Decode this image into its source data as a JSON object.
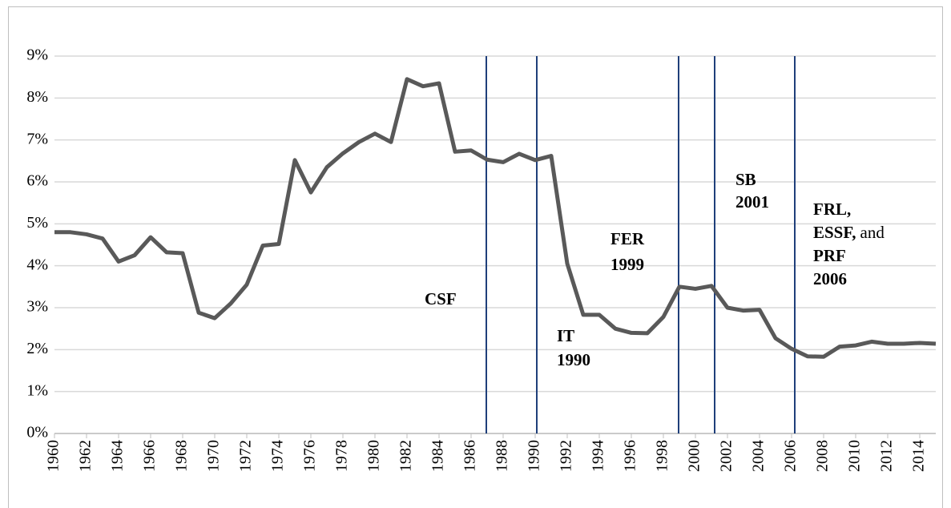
{
  "chart_data": {
    "type": "line",
    "x": [
      1960,
      1961,
      1962,
      1963,
      1964,
      1965,
      1966,
      1967,
      1968,
      1969,
      1970,
      1971,
      1972,
      1973,
      1974,
      1975,
      1976,
      1977,
      1978,
      1979,
      1980,
      1981,
      1982,
      1983,
      1984,
      1985,
      1986,
      1987,
      1988,
      1989,
      1990,
      1991,
      1992,
      1993,
      1994,
      1995,
      1996,
      1997,
      1998,
      1999,
      2000,
      2001,
      2002,
      2003,
      2004,
      2005,
      2006,
      2007,
      2008,
      2009,
      2010,
      2011,
      2012,
      2013,
      2014,
      2015
    ],
    "values": [
      4.8,
      4.8,
      4.75,
      4.65,
      4.1,
      4.25,
      4.68,
      4.32,
      4.3,
      2.88,
      2.75,
      3.1,
      3.55,
      4.48,
      4.52,
      6.52,
      5.75,
      6.35,
      6.68,
      6.95,
      7.15,
      6.95,
      8.45,
      8.28,
      8.35,
      6.72,
      6.75,
      6.53,
      6.47,
      6.67,
      6.52,
      6.62,
      4.05,
      2.83,
      2.83,
      2.5,
      2.4,
      2.39,
      2.78,
      3.5,
      3.45,
      3.52,
      3.0,
      2.93,
      2.95,
      2.27,
      2.02,
      1.84,
      1.83,
      2.07,
      2.1,
      2.19,
      2.14,
      2.14,
      2.16,
      2.14
    ],
    "color": "#595959",
    "xlim": [
      1960,
      2015
    ],
    "xticks": [
      1960,
      1962,
      1964,
      1966,
      1968,
      1970,
      1972,
      1974,
      1976,
      1978,
      1980,
      1982,
      1984,
      1986,
      1988,
      1990,
      1992,
      1994,
      1996,
      1998,
      2000,
      2002,
      2004,
      2006,
      2008,
      2010,
      2012,
      2014
    ],
    "ylim": [
      0,
      9
    ],
    "yticks": [
      {
        "value": 0,
        "label": "0%"
      },
      {
        "value": 1,
        "label": "1%"
      },
      {
        "value": 2,
        "label": "2%"
      },
      {
        "value": 3,
        "label": "3%"
      },
      {
        "value": 4,
        "label": "4%"
      },
      {
        "value": 5,
        "label": "5%"
      },
      {
        "value": 6,
        "label": "6%"
      },
      {
        "value": 7,
        "label": "7%"
      },
      {
        "value": 8,
        "label": "8%"
      },
      {
        "value": 9,
        "label": "9%"
      }
    ],
    "grid": true,
    "vlines": [
      1986.95,
      1990.1,
      1998.95,
      2001.2,
      2006.2
    ],
    "vline_color": "#1f3f7a",
    "annotations": [
      {
        "lines": [
          [
            "CSF"
          ]
        ]
      },
      {
        "lines": [
          [
            "IT"
          ],
          [
            "1990"
          ]
        ]
      },
      {
        "lines": [
          [
            "FER"
          ],
          [
            "1999"
          ]
        ]
      },
      {
        "lines": [
          [
            "SB"
          ],
          [
            "2001"
          ]
        ]
      },
      {
        "lines": [
          [
            "FRL,"
          ],
          [
            "ESSF,",
            "and"
          ],
          [
            "PRF"
          ],
          [
            "2006"
          ]
        ]
      }
    ]
  }
}
